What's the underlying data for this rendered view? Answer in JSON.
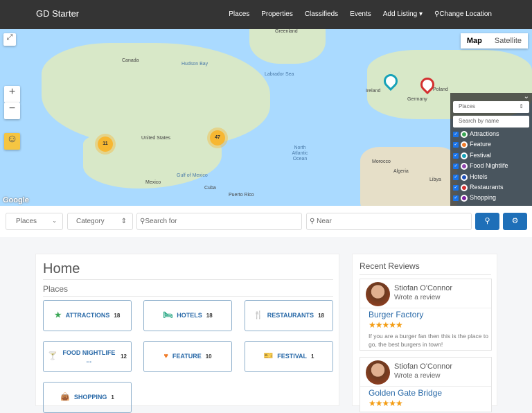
{
  "nav": {
    "brand": "GD Starter",
    "items": [
      "Places",
      "Properties",
      "Classifieds",
      "Events",
      "Add Listing ▾",
      "Change Location"
    ]
  },
  "map": {
    "type_buttons": [
      "Map",
      "Satellite"
    ],
    "labels": [
      "Greenland",
      "Canada",
      "Hudson Bay",
      "Labrador Sea",
      "United States",
      "Mexico",
      "Gulf of Mexico",
      "Cuba",
      "Puerto Rico",
      "North Atlantic Ocean",
      "Morocco",
      "Algeria",
      "Libya",
      "Ireland",
      "Poland",
      "Germany"
    ],
    "clusters": [
      "11",
      "47"
    ],
    "google": "Google",
    "panel": {
      "select": "Places",
      "search_placeholder": "Search by name",
      "items": [
        {
          "label": "Attractions",
          "color": "#3aa655"
        },
        {
          "label": "Feature",
          "color": "#f07c2a"
        },
        {
          "label": "Festival",
          "color": "#17a2b8"
        },
        {
          "label": "Food Nightlife",
          "color": "#8e44ad"
        },
        {
          "label": "Hotels",
          "color": "#1e4fb8"
        },
        {
          "label": "Restaurants",
          "color": "#d32f2f"
        },
        {
          "label": "Shopping",
          "color": "#7b1fa2"
        }
      ]
    }
  },
  "search": {
    "type": "Places",
    "category": "Category",
    "search_placeholder": "Search for",
    "near_placeholder": "Near"
  },
  "home": {
    "title": "Home",
    "section": "Places",
    "categories": [
      {
        "label": "ATTRACTIONS",
        "count": "18",
        "icon": "★",
        "color": "#3aa655"
      },
      {
        "label": "HOTELS",
        "count": "18",
        "icon": "🛏",
        "color": "#17a07a"
      },
      {
        "label": "RESTAURANTS",
        "count": "18",
        "icon": "🍴",
        "color": "#d32f2f"
      },
      {
        "label": "FOOD NIGHTLIFE ...",
        "count": "12",
        "icon": "🍸",
        "color": "#8e44ad"
      },
      {
        "label": "FEATURE",
        "count": "10",
        "icon": "♥",
        "color": "#f07c2a"
      },
      {
        "label": "FESTIVAL",
        "count": "1",
        "icon": "🎫",
        "color": "#17a2b8"
      },
      {
        "label": "SHOPPING",
        "count": "1",
        "icon": "👜",
        "color": "#7b1fa2"
      }
    ]
  },
  "reviews": {
    "title": "Recent Reviews",
    "items": [
      {
        "author": "Stiofan O'Connor",
        "action": "Wrote a review",
        "place": "Burger Factory",
        "rating": 5,
        "text": "If you are a burger fan then this is the place to go, the best burgers in town!"
      },
      {
        "author": "Stiofan O'Connor",
        "action": "Wrote a review",
        "place": "Golden Gate Bridge",
        "rating": 5
      }
    ]
  }
}
